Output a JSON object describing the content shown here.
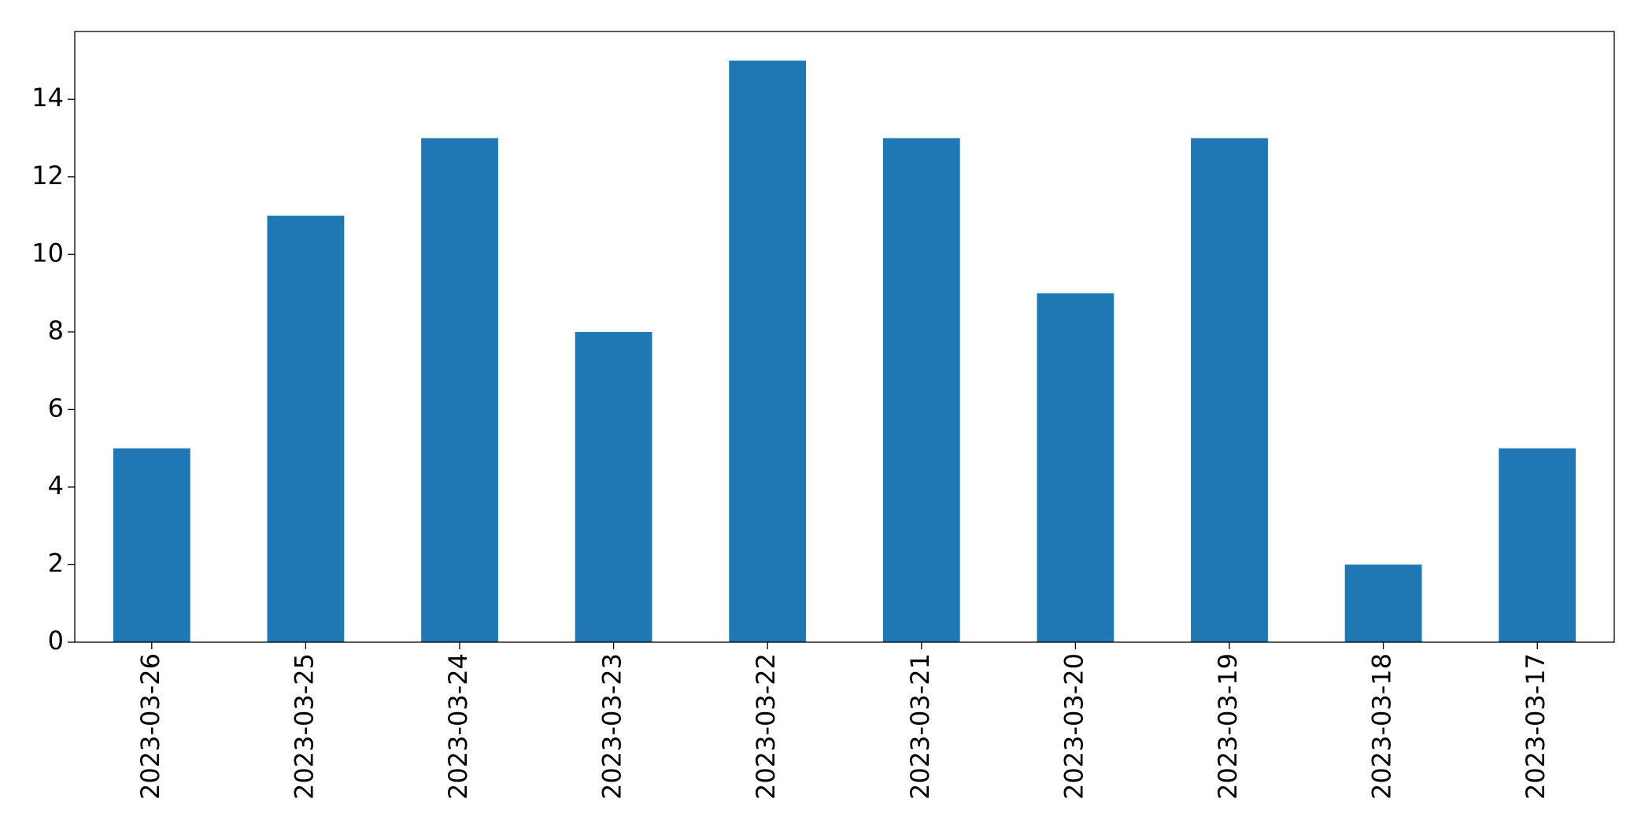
{
  "chart_data": {
    "type": "bar",
    "categories": [
      "2023-03-26",
      "2023-03-25",
      "2023-03-24",
      "2023-03-23",
      "2023-03-22",
      "2023-03-21",
      "2023-03-20",
      "2023-03-19",
      "2023-03-18",
      "2023-03-17"
    ],
    "values": [
      5,
      11,
      13,
      8,
      15,
      13,
      9,
      13,
      2,
      5
    ],
    "color": "#1f77b4",
    "ylim": [
      0,
      15.75
    ],
    "yticks": [
      0,
      2,
      4,
      6,
      8,
      10,
      12,
      14
    ],
    "grid": false
  }
}
